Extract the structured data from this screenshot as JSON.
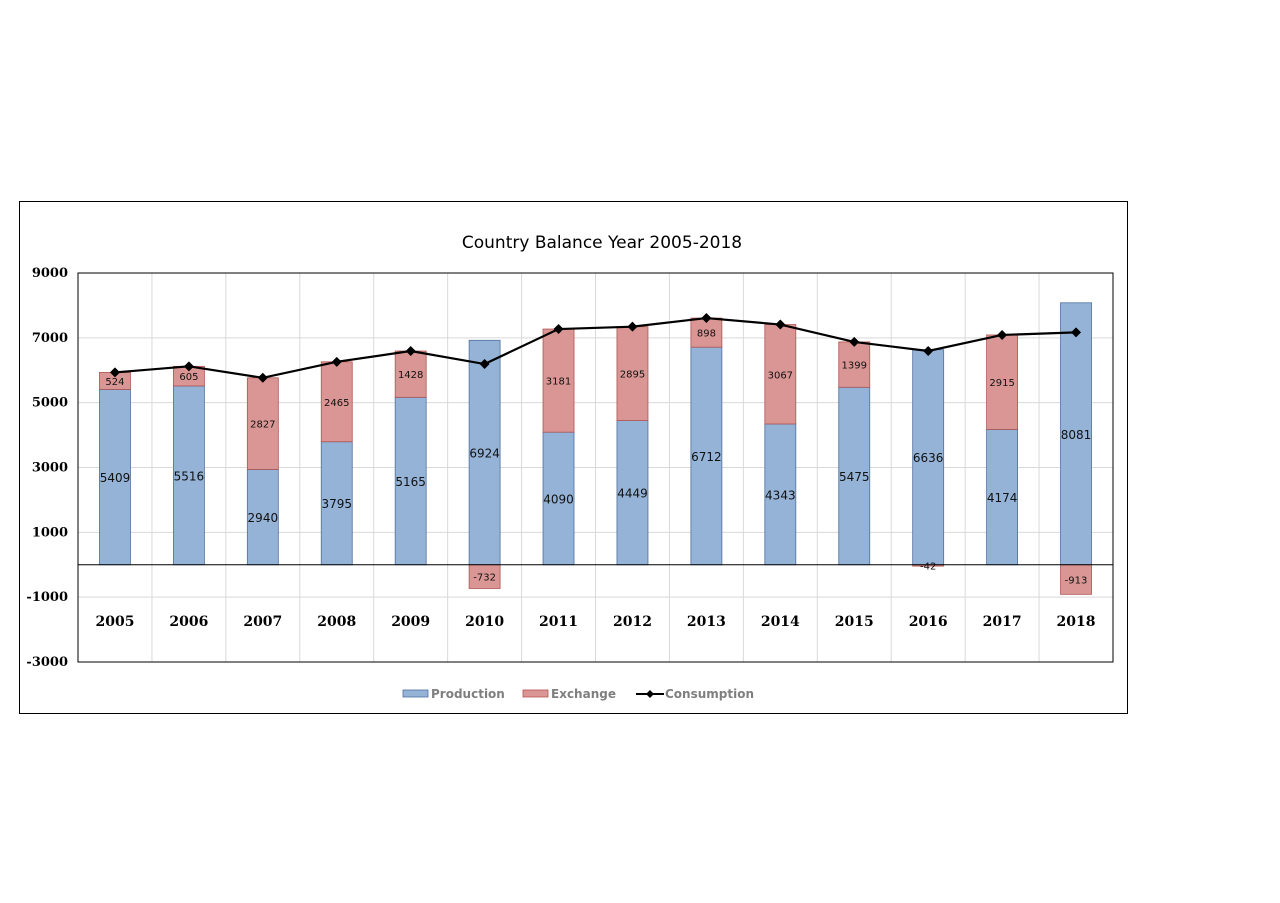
{
  "chart_data": {
    "type": "bar",
    "subtype": "stacked bar + line",
    "title": "Country Balance Year 2005-2018",
    "xlabel": "",
    "ylabel": "",
    "ylim": [
      -3000,
      9000
    ],
    "yticks": [
      9000,
      7000,
      5000,
      3000,
      1000,
      -1000,
      -3000
    ],
    "grid": true,
    "legend_position": "bottom",
    "categories": [
      "2005",
      "2006",
      "2007",
      "2008",
      "2009",
      "2010",
      "2011",
      "2012",
      "2013",
      "2014",
      "2015",
      "2016",
      "2017",
      "2018"
    ],
    "series": [
      {
        "name": "Production",
        "type": "bar",
        "color": "#95b3d7",
        "border": "#4f6f9f",
        "values": [
          5409,
          5516,
          2940,
          3795,
          5165,
          6924,
          4090,
          4449,
          6712,
          4343,
          5475,
          6636,
          4174,
          8081
        ]
      },
      {
        "name": "Exchange",
        "type": "bar",
        "color": "#da9694",
        "border": "#b05552",
        "values": [
          524,
          605,
          2827,
          2465,
          1428,
          -732,
          3181,
          2895,
          898,
          3067,
          1399,
          -42,
          2915,
          -913
        ]
      },
      {
        "name": "Consumption",
        "type": "line",
        "color": "#000000",
        "marker": "diamond",
        "values": [
          5933,
          6121,
          5767,
          6260,
          6593,
          6192,
          7271,
          7344,
          7610,
          7410,
          6874,
          6594,
          7089,
          7168
        ]
      }
    ]
  }
}
